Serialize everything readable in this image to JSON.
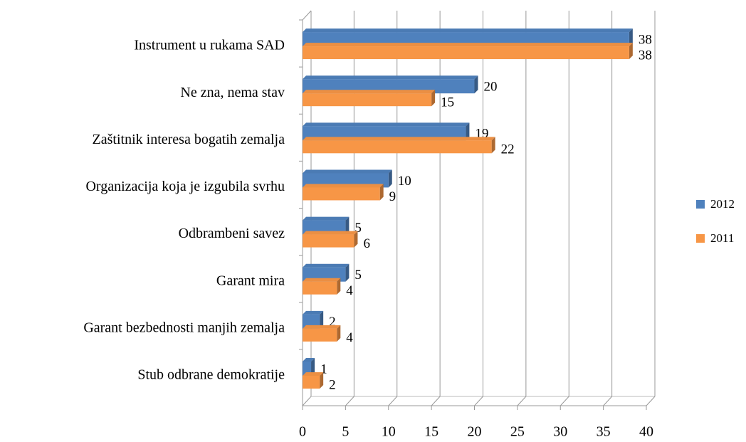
{
  "chart_data": {
    "type": "bar",
    "orientation": "horizontal",
    "three_d": true,
    "categories": [
      "Instrument u rukama SAD",
      "Ne zna, nema stav",
      "Zaštitnik interesa bogatih zemalja",
      "Organizacija koja je izgubila svrhu",
      "Odbrambeni savez",
      "Garant mira",
      "Garant bezbednosti manjih zemalja",
      "Stub odbrane demokratije"
    ],
    "series": [
      {
        "name": "2012",
        "color": "#4f81bd",
        "values": [
          38,
          20,
          19,
          10,
          5,
          5,
          2,
          1
        ]
      },
      {
        "name": "2011",
        "color": "#f79646",
        "values": [
          38,
          15,
          22,
          9,
          6,
          4,
          4,
          2
        ]
      }
    ],
    "xlim": [
      0,
      40
    ],
    "xticks": [
      0,
      5,
      10,
      15,
      20,
      25,
      30,
      35,
      40
    ],
    "grid": true,
    "legend": "right"
  }
}
